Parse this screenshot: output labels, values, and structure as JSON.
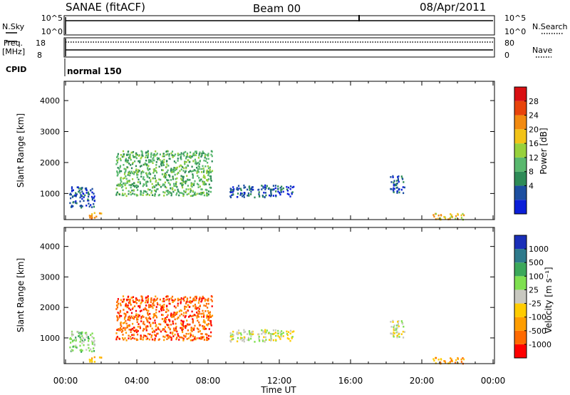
{
  "header": {
    "station": "SANAE (fitACF)",
    "beam": "Beam 00",
    "date": "08/Apr/2011"
  },
  "colors": {
    "power": [
      "#0b1fd8",
      "#1d4fa0",
      "#2e8b57",
      "#59b86e",
      "#97d13c",
      "#f2c318",
      "#f28a10",
      "#e8430b",
      "#d90f12"
    ],
    "velocity": [
      "#ff0000",
      "#ff6a00",
      "#ff9d00",
      "#ffcc00",
      "#c8c8c0",
      "#7fe050",
      "#3ba85a",
      "#2e7a8c",
      "#1a2fb8"
    ],
    "frame": "#000000"
  },
  "chart_data": [
    {
      "type": "line",
      "name": "nsky-nsearch",
      "labels": {
        "left": "N.Sky",
        "right": "N.Search"
      },
      "ticks_left": [
        "10^5",
        "10^0"
      ],
      "ticks_right": [
        "10^5",
        "10^0"
      ]
    },
    {
      "type": "line",
      "name": "freq-nave",
      "labels": {
        "left_top": "Freq.",
        "left_bottom": "[MHz]",
        "right": "Nave"
      },
      "ticks_left": [
        "18",
        "8"
      ],
      "ticks_right": [
        "80",
        "0"
      ]
    },
    {
      "type": "table",
      "name": "cpid",
      "label": "CPID",
      "value": "normal 150"
    },
    {
      "type": "heatmap",
      "name": "power",
      "ylabel": "Slant Range [km]",
      "ylim": [
        180,
        4600
      ],
      "yticks": [
        "4000",
        "3000",
        "2000",
        "1000"
      ],
      "colorbar": {
        "label": "Power [dB]",
        "ticks": [
          "28",
          "24",
          "20",
          "16",
          "12",
          "8",
          "4"
        ]
      },
      "patches": [
        {
          "t0": 0.2,
          "t1": 1.6,
          "r0": 550,
          "r1": 1250,
          "level": 1
        },
        {
          "t0": 1.3,
          "t1": 2.0,
          "r0": 200,
          "r1": 400,
          "level": 6
        },
        {
          "t0": 2.8,
          "t1": 8.2,
          "r0": 950,
          "r1": 2400,
          "level": 3
        },
        {
          "t0": 9.2,
          "t1": 12.8,
          "r0": 900,
          "r1": 1300,
          "level": 1
        },
        {
          "t0": 18.2,
          "t1": 19.0,
          "r0": 1000,
          "r1": 1600,
          "level": 1
        },
        {
          "t0": 20.6,
          "t1": 22.4,
          "r0": 180,
          "r1": 380,
          "level": 5
        }
      ]
    },
    {
      "type": "heatmap",
      "name": "velocity",
      "ylabel": "Slant Range [km]",
      "xlabel": "Time UT",
      "ylim": [
        180,
        4600
      ],
      "yticks": [
        "4000",
        "3000",
        "2000",
        "1000"
      ],
      "xticks": [
        "00:00",
        "04:00",
        "08:00",
        "12:00",
        "16:00",
        "20:00",
        "00:00"
      ],
      "colorbar": {
        "label": "Velocity  [m s⁻¹]",
        "ticks": [
          "1000",
          "500",
          "100",
          "25",
          "-25",
          "-100",
          "-500",
          "-1000"
        ]
      },
      "patches": [
        {
          "t0": 0.2,
          "t1": 1.6,
          "r0": 550,
          "r1": 1250,
          "level": 5
        },
        {
          "t0": 1.3,
          "t1": 2.0,
          "r0": 200,
          "r1": 400,
          "level": 3
        },
        {
          "t0": 2.8,
          "t1": 8.2,
          "r0": 950,
          "r1": 2400,
          "level": 1
        },
        {
          "t0": 9.2,
          "t1": 12.8,
          "r0": 900,
          "r1": 1300,
          "level": 4
        },
        {
          "t0": 18.2,
          "t1": 19.0,
          "r0": 1000,
          "r1": 1600,
          "level": 4
        },
        {
          "t0": 20.6,
          "t1": 22.4,
          "r0": 180,
          "r1": 380,
          "level": 2
        }
      ]
    }
  ]
}
